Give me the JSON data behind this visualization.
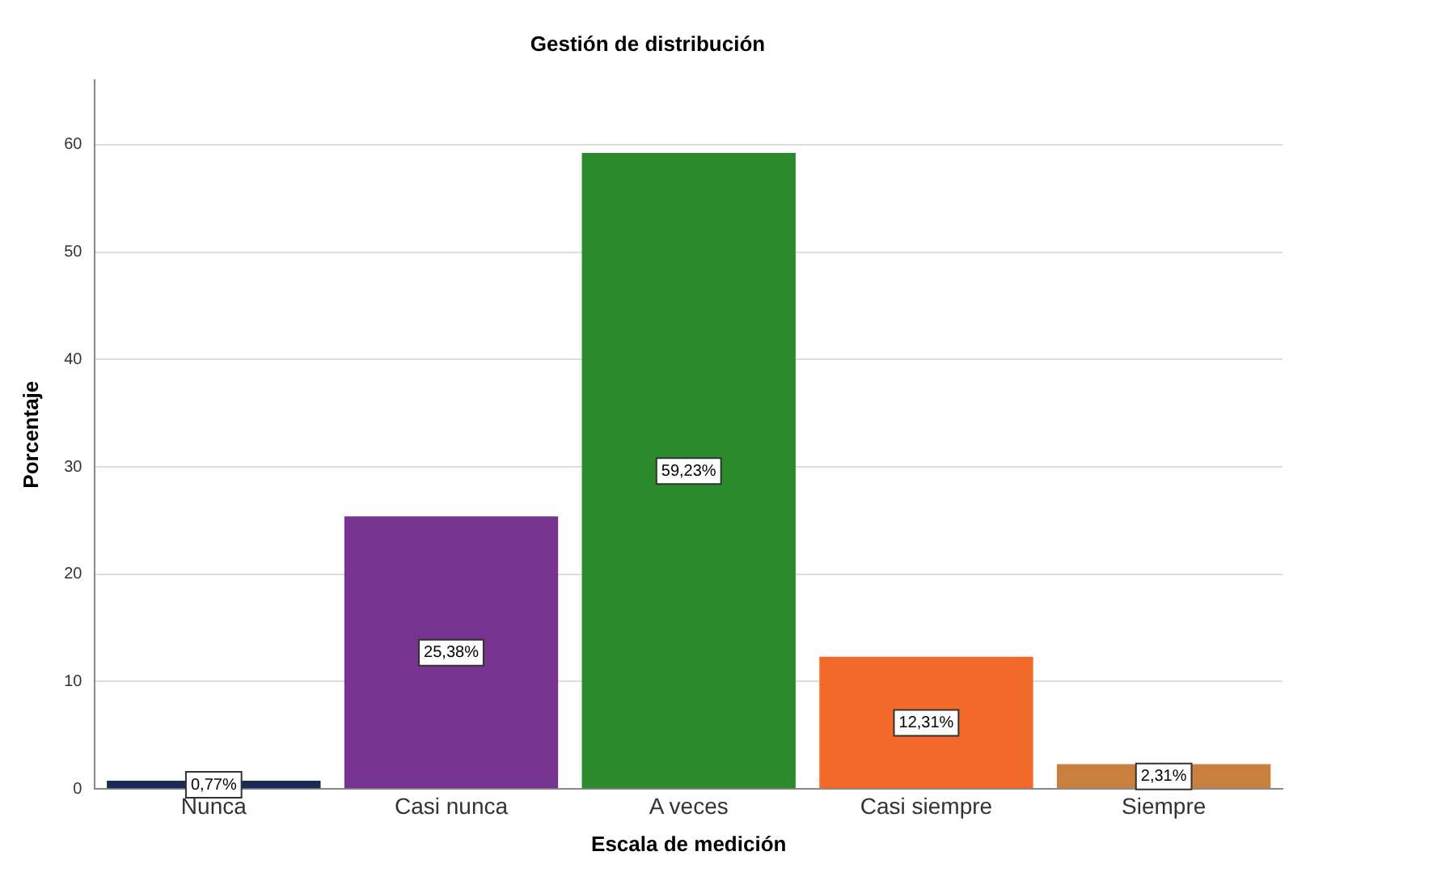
{
  "chart_data": {
    "type": "bar",
    "title": "Gestión de distribución",
    "xlabel": "Escala de medición",
    "ylabel": "Porcentaje",
    "categories": [
      "Nunca",
      "Casi nunca",
      "A veces",
      "Casi siempre",
      "Siempre"
    ],
    "values": [
      0.77,
      25.38,
      59.23,
      12.31,
      2.31
    ],
    "colors": [
      "#1b2a56",
      "#76338f",
      "#2b8a2b",
      "#f26a2a",
      "#c9803f"
    ],
    "value_labels": [
      "0,77%",
      "25,38%",
      "59,23%",
      "12,31%",
      "2,31%"
    ],
    "ylim": [
      0,
      66
    ],
    "yticks": [
      0,
      10,
      20,
      30,
      40,
      50,
      60
    ],
    "grid": "y",
    "legend": false
  }
}
